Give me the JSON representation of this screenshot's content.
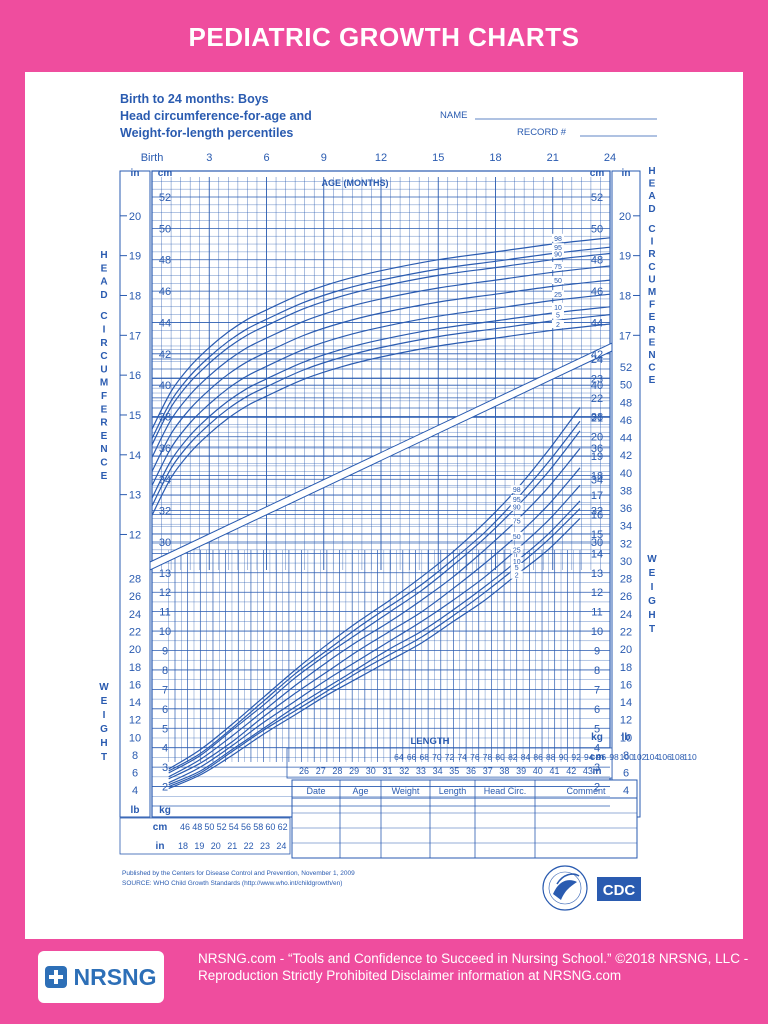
{
  "banner": {
    "title": "PEDIATRIC GROWTH CHARTS"
  },
  "chart_header": {
    "line1": "Birth to 24 months: Boys",
    "line2": "Head circumference-for-age and",
    "line3": "Weight-for-length percentiles",
    "name_label": "NAME",
    "record_label": "RECORD #"
  },
  "chart_data": [
    {
      "type": "line",
      "title": "Head circumference-for-age",
      "xlabel": "AGE (MONTHS)",
      "ylabel": "HEAD CIRCUMFERENCE",
      "x_tick_labels": [
        "Birth",
        "3",
        "6",
        "9",
        "12",
        "15",
        "18",
        "21",
        "24"
      ],
      "xlim": [
        0,
        24
      ],
      "ylim": [
        29,
        53
      ],
      "y_units": [
        "cm",
        "in"
      ],
      "cm_tick_labels": [
        30,
        32,
        34,
        36,
        38,
        40,
        42,
        44,
        46,
        48,
        50,
        52
      ],
      "in_tick_labels": [
        12,
        13,
        14,
        15,
        16,
        17,
        18,
        19,
        20
      ],
      "grid": true,
      "x": [
        0,
        1,
        2,
        3,
        4,
        5,
        6,
        8,
        10,
        12,
        15,
        18,
        21,
        24
      ],
      "series": [
        {
          "name": "98",
          "values": [
            37.2,
            39.6,
            41.2,
            42.4,
            43.4,
            44.2,
            44.8,
            45.9,
            46.7,
            47.3,
            48.0,
            48.5,
            49.0,
            49.4
          ]
        },
        {
          "name": "95",
          "values": [
            36.6,
            39.0,
            40.6,
            41.8,
            42.8,
            43.6,
            44.2,
            45.3,
            46.1,
            46.7,
            47.4,
            47.9,
            48.4,
            48.8
          ]
        },
        {
          "name": "90",
          "values": [
            36.2,
            38.6,
            40.2,
            41.4,
            42.4,
            43.2,
            43.8,
            44.9,
            45.7,
            46.3,
            47.0,
            47.5,
            48.0,
            48.4
          ]
        },
        {
          "name": "75",
          "values": [
            35.4,
            37.8,
            39.4,
            40.6,
            41.6,
            42.4,
            43.0,
            44.1,
            44.9,
            45.5,
            46.2,
            46.7,
            47.2,
            47.6
          ]
        },
        {
          "name": "50",
          "values": [
            34.5,
            36.9,
            38.5,
            39.7,
            40.7,
            41.5,
            42.1,
            43.2,
            44.0,
            44.6,
            45.3,
            45.8,
            46.3,
            46.7
          ]
        },
        {
          "name": "25",
          "values": [
            33.6,
            36.0,
            37.6,
            38.8,
            39.8,
            40.6,
            41.2,
            42.3,
            43.1,
            43.7,
            44.4,
            44.9,
            45.4,
            45.8
          ]
        },
        {
          "name": "10",
          "values": [
            32.8,
            35.2,
            36.8,
            38.0,
            39.0,
            39.8,
            40.4,
            41.5,
            42.3,
            42.9,
            43.6,
            44.1,
            44.6,
            45.0
          ]
        },
        {
          "name": "5",
          "values": [
            32.3,
            34.7,
            36.3,
            37.5,
            38.5,
            39.3,
            39.9,
            41.0,
            41.8,
            42.4,
            43.1,
            43.6,
            44.1,
            44.5
          ]
        },
        {
          "name": "2",
          "values": [
            31.7,
            34.1,
            35.7,
            36.9,
            37.9,
            38.7,
            39.3,
            40.4,
            41.2,
            41.8,
            42.5,
            43.0,
            43.5,
            43.9
          ]
        }
      ]
    },
    {
      "type": "line",
      "title": "Weight-for-length",
      "xlabel": "LENGTH",
      "ylabel": "WEIGHT",
      "xlim": [
        45,
        110
      ],
      "ylim": [
        1,
        24.5
      ],
      "x_units": [
        "cm",
        "in"
      ],
      "length_cm_tick_labels": [
        46,
        48,
        50,
        52,
        54,
        56,
        58,
        60,
        62,
        64,
        66,
        68,
        70,
        72,
        74,
        76,
        78,
        80,
        82,
        84,
        86,
        88,
        90,
        92,
        94,
        96,
        98,
        100,
        102,
        104,
        106,
        108,
        110
      ],
      "length_in_tick_labels": [
        18,
        19,
        20,
        21,
        22,
        23,
        24,
        26,
        27,
        28,
        29,
        30,
        31,
        32,
        33,
        34,
        35,
        36,
        37,
        38,
        39,
        40,
        41,
        42,
        43
      ],
      "weight_kg_tick_labels": [
        2,
        3,
        4,
        5,
        6,
        7,
        8,
        9,
        10,
        11,
        12,
        13,
        14,
        15,
        16,
        17,
        18,
        19,
        20,
        21,
        22,
        23,
        24
      ],
      "weight_lb_tick_labels": [
        4,
        6,
        8,
        10,
        12,
        14,
        16,
        18,
        20,
        22,
        24,
        26,
        28,
        30,
        32,
        34,
        36,
        38,
        40,
        42,
        44,
        46,
        48,
        50,
        52
      ],
      "grid": true,
      "x": [
        45,
        50,
        55,
        60,
        65,
        70,
        75,
        80,
        85,
        90,
        95,
        100,
        105,
        110
      ],
      "series": [
        {
          "name": "98",
          "values": [
            2.9,
            3.9,
            5.2,
            6.6,
            8.0,
            9.3,
            10.5,
            11.6,
            12.8,
            14.1,
            15.6,
            17.3,
            19.3,
            21.5
          ]
        },
        {
          "name": "95",
          "values": [
            2.8,
            3.7,
            5.0,
            6.4,
            7.8,
            9.0,
            10.2,
            11.3,
            12.4,
            13.7,
            15.1,
            16.8,
            18.7,
            20.8
          ]
        },
        {
          "name": "90",
          "values": [
            2.7,
            3.6,
            4.9,
            6.2,
            7.6,
            8.8,
            9.9,
            11.0,
            12.1,
            13.4,
            14.8,
            16.4,
            18.2,
            20.3
          ]
        },
        {
          "name": "75",
          "values": [
            2.5,
            3.4,
            4.6,
            5.9,
            7.2,
            8.4,
            9.5,
            10.5,
            11.6,
            12.8,
            14.2,
            15.7,
            17.4,
            19.4
          ]
        },
        {
          "name": "50",
          "values": [
            2.4,
            3.2,
            4.3,
            5.6,
            6.8,
            7.9,
            9.0,
            10.0,
            11.0,
            12.2,
            13.5,
            14.9,
            16.5,
            18.4
          ]
        },
        {
          "name": "25",
          "values": [
            2.2,
            3.0,
            4.1,
            5.3,
            6.4,
            7.5,
            8.5,
            9.5,
            10.5,
            11.6,
            12.8,
            14.2,
            15.7,
            17.5
          ]
        },
        {
          "name": "10",
          "values": [
            2.1,
            2.8,
            3.9,
            5.0,
            6.1,
            7.1,
            8.1,
            9.1,
            10.0,
            11.1,
            12.3,
            13.6,
            15.0,
            16.7
          ]
        },
        {
          "name": "5",
          "values": [
            2.0,
            2.7,
            3.8,
            4.9,
            5.9,
            6.9,
            7.9,
            8.8,
            9.7,
            10.8,
            12.0,
            13.3,
            14.7,
            16.3
          ]
        },
        {
          "name": "2",
          "values": [
            1.9,
            2.6,
            3.6,
            4.7,
            5.7,
            6.7,
            7.6,
            8.5,
            9.4,
            10.5,
            11.6,
            12.9,
            14.2,
            15.8
          ]
        }
      ]
    }
  ],
  "record_table": {
    "columns": [
      "Date",
      "Age",
      "Weight",
      "Length",
      "Head Circ.",
      "Comment"
    ]
  },
  "source": {
    "line1": "Published by the Centers for Disease Control and Prevention, November 1, 2009",
    "line2": "SOURCE:  WHO Child Growth Standards (http://www.who.int/childgrowth/en)"
  },
  "logos": {
    "cdc": "CDC",
    "hhs": "hhs-eagle-seal"
  },
  "colors": {
    "banner": "#ef4d9e",
    "chart_blue": "#2a5bb0",
    "brand_blue": "#2d6fb7"
  },
  "footer": {
    "logo_text": "NRSNG",
    "text": "NRSNG.com - “Tools and Confidence to Succeed in Nursing School.” ©2018 NRSNG, LLC - Reproduction Strictly Prohibited Disclaimer information at NRSNG.com"
  }
}
